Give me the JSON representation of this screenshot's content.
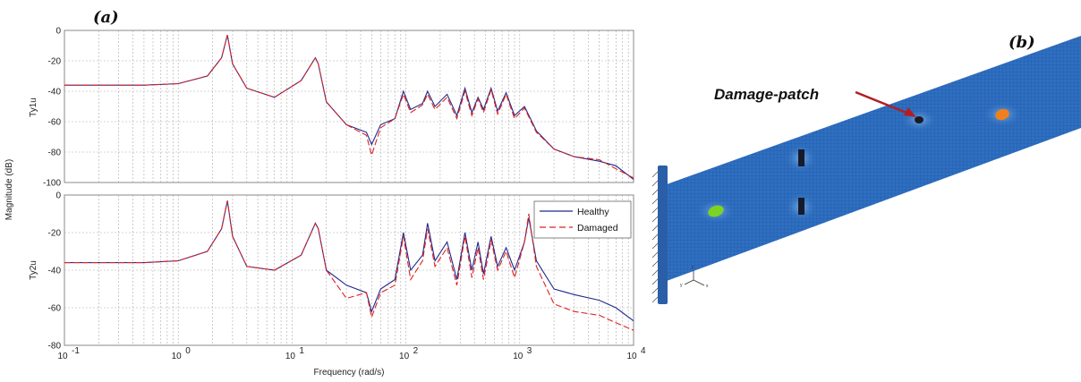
{
  "labels": {
    "panel_a": "(a)",
    "panel_b": "(b)",
    "callout": "Damage-patch"
  },
  "colors": {
    "healthy": "#1f2a8c",
    "damaged": "#e02020",
    "beam": "#2f6fc0",
    "mesh": "#1a4f9e",
    "support": "#2a5fa8",
    "patch_green": "#7dd321",
    "patch_orange": "#f07f1e",
    "arrow": "#b01e24"
  },
  "chart_data": [
    {
      "type": "line",
      "ylabel_plot": "Ty1u",
      "shared_ylabel": "Magnitude (dB)",
      "xlabel": "",
      "xscale": "log",
      "xlim": [
        0.1,
        10000
      ],
      "ylim": [
        -100,
        0
      ],
      "yticks": [
        "0",
        "-20",
        "-40",
        "-60",
        "-80",
        "-100"
      ],
      "grid": true,
      "series": [
        {
          "name": "Healthy",
          "x": [
            0.1,
            0.5,
            1.0,
            1.8,
            2.4,
            2.7,
            3.0,
            4.0,
            7.0,
            12.0,
            16.0,
            17.0,
            20.0,
            30.0,
            45.0,
            50.0,
            60.0,
            80.0,
            95.0,
            110.0,
            140.0,
            155.0,
            180.0,
            230.0,
            280.0,
            330.0,
            380.0,
            430.0,
            480.0,
            560.0,
            640.0,
            760.0,
            900.0,
            1100.0,
            1400.0,
            2000.0,
            3000.0,
            5000.0,
            7000.0,
            10000.0
          ],
          "y": [
            -36,
            -36,
            -35,
            -30,
            -18,
            -3,
            -22,
            -38,
            -44,
            -33,
            -18,
            -22,
            -47,
            -62,
            -67,
            -75,
            -62,
            -58,
            -40,
            -52,
            -48,
            -40,
            -50,
            -42,
            -56,
            -38,
            -54,
            -44,
            -52,
            -38,
            -53,
            -41,
            -56,
            -50,
            -66,
            -78,
            -83,
            -86,
            -89,
            -98
          ]
        },
        {
          "name": "Damaged",
          "x": [
            0.1,
            0.5,
            1.0,
            1.8,
            2.4,
            2.7,
            3.0,
            4.0,
            7.0,
            12.0,
            16.0,
            17.0,
            20.0,
            30.0,
            45.0,
            50.0,
            60.0,
            80.0,
            95.0,
            110.0,
            140.0,
            155.0,
            180.0,
            230.0,
            280.0,
            330.0,
            380.0,
            430.0,
            480.0,
            560.0,
            640.0,
            760.0,
            900.0,
            1100.0,
            1400.0,
            2000.0,
            3000.0,
            5000.0,
            7000.0,
            10000.0
          ],
          "y": [
            -36,
            -36,
            -35,
            -30,
            -18,
            -3,
            -22,
            -38,
            -44,
            -33,
            -18,
            -22,
            -47,
            -62,
            -69,
            -82,
            -64,
            -58,
            -42,
            -54,
            -49,
            -42,
            -52,
            -44,
            -58,
            -40,
            -56,
            -45,
            -54,
            -39,
            -55,
            -42,
            -58,
            -51,
            -67,
            -78,
            -83,
            -85,
            -91,
            -97
          ]
        }
      ]
    },
    {
      "type": "line",
      "ylabel_plot": "Ty2u",
      "xlabel": "Frequency  (rad/s)",
      "xscale": "log",
      "xlim": [
        0.1,
        10000
      ],
      "ylim": [
        -80,
        0
      ],
      "yticks": [
        "0",
        "-20",
        "-40",
        "-60",
        "-80"
      ],
      "xticks": [
        "-1",
        "0",
        "1",
        "2",
        "3",
        "4"
      ],
      "grid": true,
      "legend": "top-right",
      "series": [
        {
          "name": "Healthy",
          "x": [
            0.1,
            0.5,
            1.0,
            1.8,
            2.4,
            2.7,
            3.0,
            4.0,
            7.0,
            12.0,
            16.0,
            17.0,
            20.0,
            30.0,
            45.0,
            50.0,
            60.0,
            80.0,
            95.0,
            110.0,
            140.0,
            155.0,
            180.0,
            230.0,
            280.0,
            330.0,
            380.0,
            430.0,
            480.0,
            560.0,
            640.0,
            760.0,
            900.0,
            1100.0,
            1200.0,
            1400.0,
            2000.0,
            3000.0,
            5000.0,
            7000.0,
            10000.0
          ],
          "y": [
            -36,
            -36,
            -35,
            -30,
            -18,
            -3,
            -22,
            -38,
            -40,
            -32,
            -15,
            -18,
            -40,
            -48,
            -52,
            -62,
            -50,
            -45,
            -20,
            -40,
            -32,
            -15,
            -35,
            -25,
            -45,
            -20,
            -40,
            -25,
            -42,
            -22,
            -38,
            -28,
            -40,
            -25,
            -12,
            -35,
            -50,
            -53,
            -56,
            -60,
            -67
          ]
        },
        {
          "name": "Damaged",
          "x": [
            0.1,
            0.5,
            1.0,
            1.8,
            2.4,
            2.7,
            3.0,
            4.0,
            7.0,
            12.0,
            16.0,
            17.0,
            20.0,
            30.0,
            45.0,
            50.0,
            60.0,
            80.0,
            95.0,
            110.0,
            140.0,
            155.0,
            180.0,
            230.0,
            280.0,
            330.0,
            380.0,
            430.0,
            480.0,
            560.0,
            640.0,
            760.0,
            900.0,
            1100.0,
            1200.0,
            1400.0,
            2000.0,
            3000.0,
            5000.0,
            7000.0,
            10000.0
          ],
          "y": [
            -36,
            -36,
            -35,
            -30,
            -18,
            -3,
            -22,
            -38,
            -40,
            -32,
            -15,
            -18,
            -40,
            -55,
            -52,
            -65,
            -52,
            -48,
            -22,
            -45,
            -35,
            -18,
            -38,
            -28,
            -48,
            -22,
            -44,
            -28,
            -45,
            -24,
            -40,
            -30,
            -44,
            -25,
            -10,
            -38,
            -58,
            -62,
            -64,
            -68,
            -72
          ]
        }
      ]
    }
  ]
}
